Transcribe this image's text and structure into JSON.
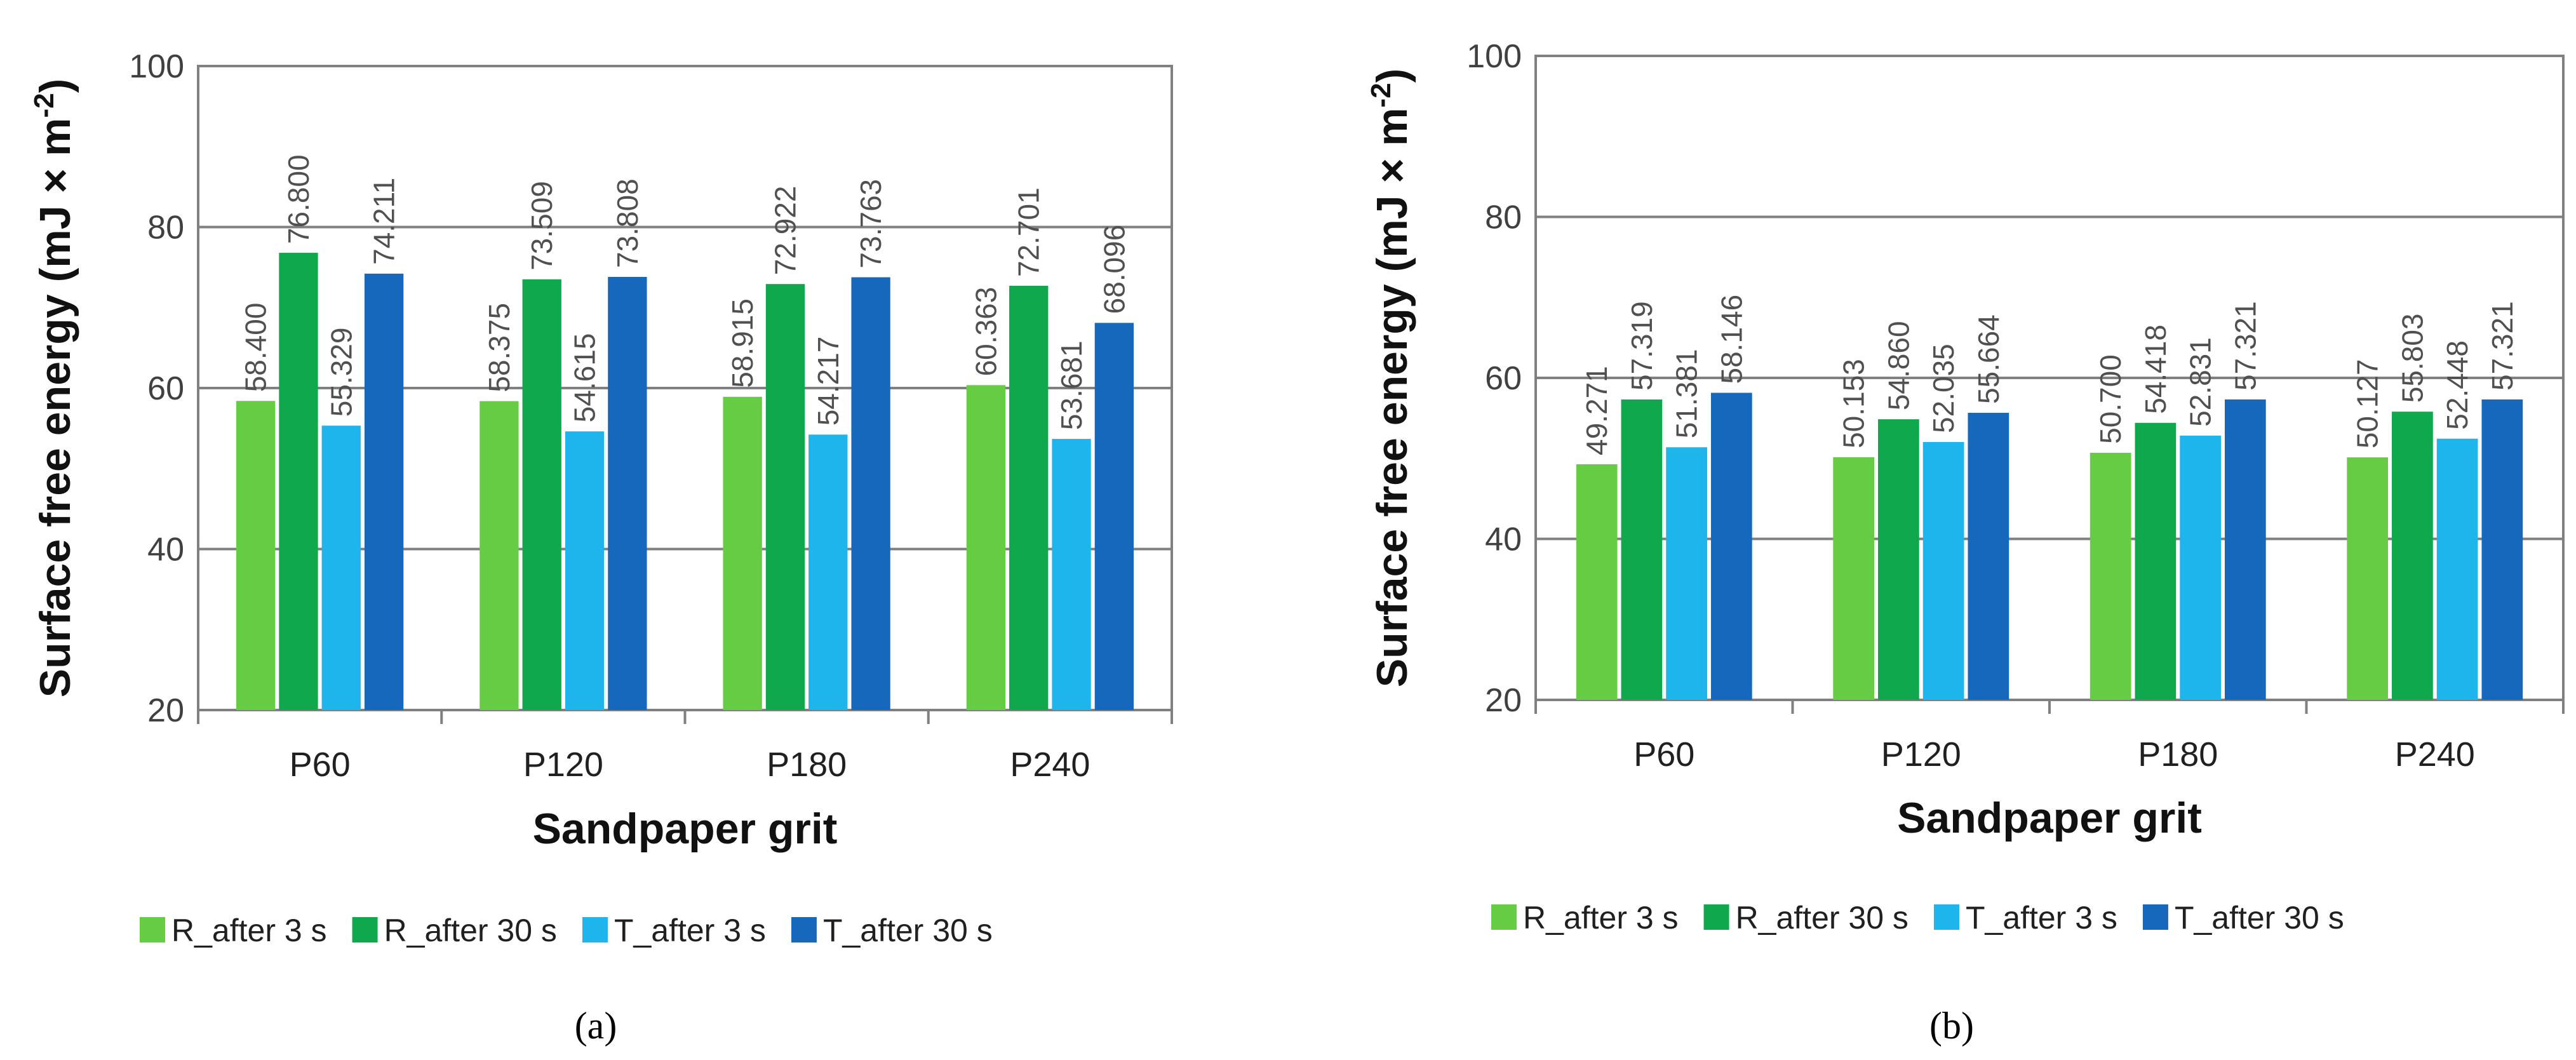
{
  "chart_data": [
    {
      "type": "bar",
      "panel_label": "a",
      "title": "",
      "ylabel": "Surface free energy (mJ × m-2)",
      "ylabel_main": "Surface free energy (mJ × m",
      "ylabel_sup": "-2",
      "ylabel_end": ")",
      "xlabel": "Sandpaper grit",
      "ylim": [
        20,
        100
      ],
      "yticks": [
        20,
        40,
        60,
        80,
        100
      ],
      "grid": true,
      "legend_position": "bottom",
      "categories": [
        "P60",
        "P120",
        "P180",
        "P240"
      ],
      "series": [
        {
          "name": "R_after 3 s",
          "color": "#66cc44",
          "values": [
            58.4,
            58.375,
            58.915,
            60.363
          ],
          "labels": [
            "58.400",
            "58.375",
            "58.915",
            "60.363"
          ]
        },
        {
          "name": "R_after 30 s",
          "color": "#10a84c",
          "values": [
            76.8,
            73.509,
            72.922,
            72.701
          ],
          "labels": [
            "76.800",
            "73.509",
            "72.922",
            "72.701"
          ]
        },
        {
          "name": "T_after 3 s",
          "color": "#1eb4ec",
          "values": [
            55.329,
            54.615,
            54.217,
            53.681
          ],
          "labels": [
            "55.329",
            "54.615",
            "54.217",
            "53.681"
          ]
        },
        {
          "name": "T_after 30 s",
          "color": "#1668bc",
          "values": [
            74.211,
            73.808,
            73.763,
            68.096
          ],
          "labels": [
            "74.211",
            "73.808",
            "73.763",
            "68.096"
          ]
        }
      ]
    },
    {
      "type": "bar",
      "panel_label": "b",
      "title": "",
      "ylabel": "Surface free energy (mJ × m-2)",
      "ylabel_main": "Surface free energy (mJ × m",
      "ylabel_sup": "-2",
      "ylabel_end": ")",
      "xlabel": "Sandpaper grit",
      "ylim": [
        20,
        100
      ],
      "yticks": [
        20,
        40,
        60,
        80,
        100
      ],
      "grid": true,
      "legend_position": "bottom",
      "categories": [
        "P60",
        "P120",
        "P180",
        "P240"
      ],
      "series": [
        {
          "name": "R_after 3 s",
          "color": "#66cc44",
          "values": [
            49.271,
            50.153,
            50.7,
            50.127
          ],
          "labels": [
            "49.271",
            "50.153",
            "50.700",
            "50.127"
          ]
        },
        {
          "name": "R_after 30 s",
          "color": "#10a84c",
          "values": [
            57.319,
            54.86,
            54.418,
            55.803
          ],
          "labels": [
            "57.319",
            "54.860",
            "54.418",
            "55.803"
          ]
        },
        {
          "name": "T_after 3 s",
          "color": "#1eb4ec",
          "values": [
            51.381,
            52.035,
            52.831,
            52.448
          ],
          "labels": [
            "51.381",
            "52.035",
            "52.831",
            "52.448"
          ]
        },
        {
          "name": "T_after 30 s",
          "color": "#1668bc",
          "values": [
            58.146,
            55.664,
            57.321,
            57.321
          ],
          "labels": [
            "58.146",
            "55.664",
            "57.321",
            "57.321"
          ]
        }
      ]
    }
  ],
  "captions": [
    "(a)",
    "(b)"
  ]
}
